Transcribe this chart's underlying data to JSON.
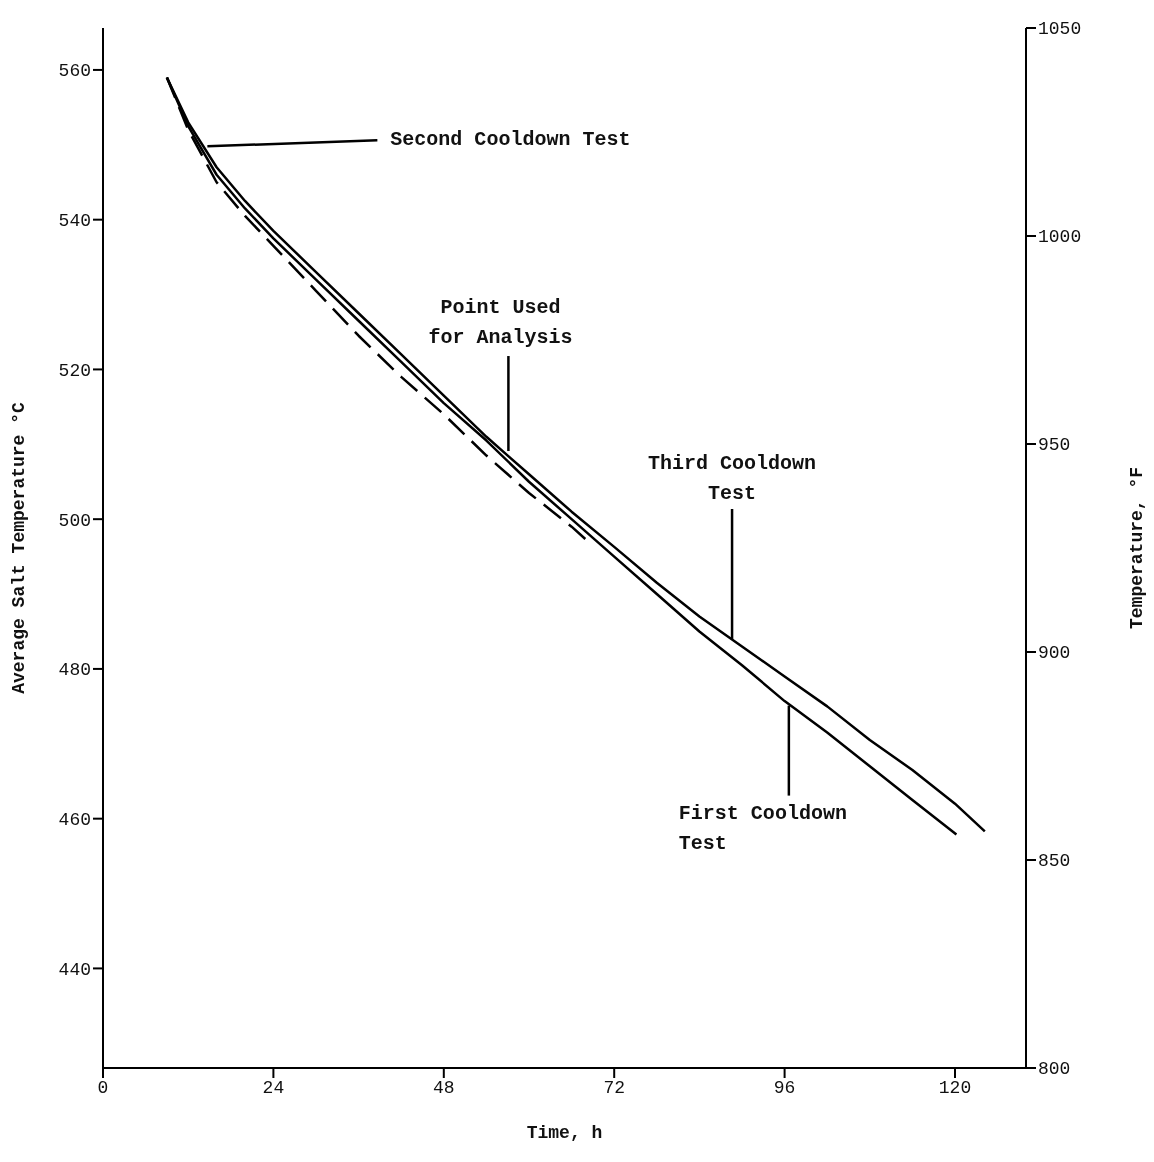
{
  "chart_data": {
    "type": "line",
    "xlabel": "Time, h",
    "ylabel": "Average Salt Temperature °C",
    "y2label": "Temperature, °F",
    "xlim": [
      0,
      130
    ],
    "xticks": [
      0,
      24,
      48,
      72,
      96,
      120
    ],
    "ylim": [
      426.7,
      565.6
    ],
    "yticks": [
      440,
      460,
      480,
      500,
      520,
      540,
      560
    ],
    "y2lim": [
      800,
      1050
    ],
    "y2ticks": [
      800,
      850,
      900,
      950,
      1000,
      1050
    ],
    "marker": "none",
    "series": [
      {
        "color": "#000000",
        "line_style": "solid",
        "x": [
          9,
          12,
          16,
          20,
          24,
          30,
          36,
          42,
          48,
          54,
          60,
          66,
          72,
          78,
          84,
          90,
          96,
          102,
          108,
          114,
          120,
          124.2
        ],
        "values": [
          559,
          553,
          547,
          542.5,
          538.5,
          533,
          527.5,
          522,
          516.5,
          511,
          506,
          501,
          496.3,
          491.5,
          487,
          483,
          479,
          475,
          470.5,
          466.5,
          462,
          458.3
        ]
      },
      {
        "color": "#000000",
        "line_style": "solid",
        "x": [
          9,
          12,
          16,
          20,
          24,
          30,
          36,
          42,
          48,
          54,
          60,
          66,
          72,
          78,
          84,
          90,
          96,
          102,
          108,
          114,
          120.2
        ],
        "values": [
          559,
          552.5,
          546,
          541.5,
          537.5,
          532,
          526.5,
          521,
          515.5,
          510.5,
          505,
          500,
          495,
          490,
          485,
          480.5,
          475.7,
          471.5,
          467,
          462.5,
          457.9
        ]
      },
      {
        "color": "#000000",
        "line_style": "dashed",
        "x": [
          9,
          12,
          16,
          20,
          24,
          30,
          36,
          42,
          48,
          54,
          60,
          66,
          68
        ],
        "values": [
          559,
          552,
          545,
          540.5,
          536.5,
          530.5,
          524.5,
          519,
          514,
          508.5,
          503.5,
          499,
          497.3
        ]
      }
    ],
    "annotations": [
      {
        "text": "Second Cooldown Test",
        "x": 14.7,
        "y": 549.8
      },
      {
        "text": "Point Used\nfor Analysis",
        "x": 57.1,
        "y": 509.1
      },
      {
        "text": "Third Cooldown\nTest",
        "x": 88.6,
        "y": 484
      },
      {
        "text": "First Cooldown\nTest",
        "x": 96.6,
        "y": 475.1
      }
    ]
  }
}
